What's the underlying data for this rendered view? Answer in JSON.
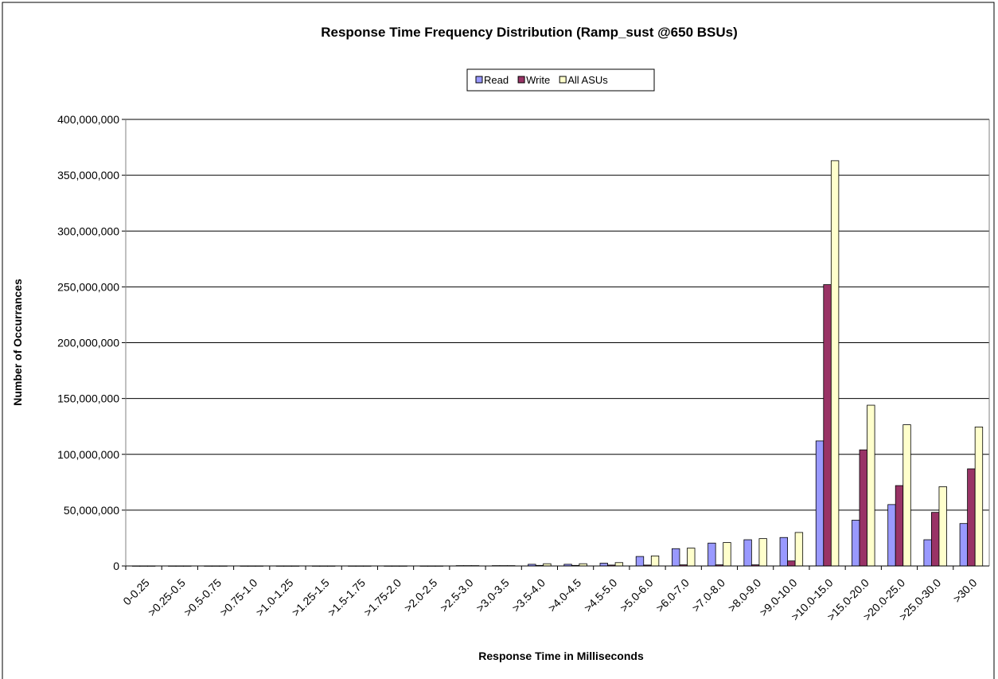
{
  "chart_data": {
    "type": "bar",
    "title": "Response Time Frequency Distribution (Ramp_sust @650 BSUs)",
    "x_label": "Response  Time in Milliseconds",
    "y_label": "Number of Occurrances",
    "categories": [
      "0-0.25",
      ">0.25-0.5",
      ">0.5-0.75",
      ">0.75-1.0",
      ">1.0-1.25",
      ">1.25-1.5",
      ">1.5-1.75",
      ">1.75-2.0",
      ">2.0-2.5",
      ">2.5-3.0",
      ">3.0-3.5",
      ">3.5-4.0",
      ">4.0-4.5",
      ">4.5-5.0",
      ">5.0-6.0",
      ">6.0-7.0",
      ">7.0-8.0",
      ">8.0-9.0",
      ">9.0-10.0",
      ">10.0-15.0",
      ">15.0-20.0",
      ">20.0-25.0",
      ">25.0-30.0",
      ">30.0"
    ],
    "series": [
      {
        "name": "Read",
        "color": "#9999ff",
        "values": [
          100000,
          100000,
          100000,
          100000,
          100000,
          100000,
          100000,
          100000,
          100000,
          300000,
          300000,
          1500000,
          1500000,
          2500000,
          8500000,
          15500000,
          20500000,
          23500000,
          25500000,
          112000000,
          41000000,
          55000000,
          23500000,
          38000000
        ]
      },
      {
        "name": "Write",
        "color": "#993366",
        "values": [
          100000,
          100000,
          100000,
          100000,
          100000,
          100000,
          100000,
          100000,
          100000,
          300000,
          300000,
          500000,
          500000,
          800000,
          800000,
          1000000,
          1000000,
          1000000,
          4500000,
          252000000,
          104000000,
          72000000,
          48000000,
          87000000
        ]
      },
      {
        "name": "All ASUs",
        "color": "#ffffcc",
        "values": [
          100000,
          100000,
          100000,
          100000,
          100000,
          100000,
          100000,
          100000,
          100000,
          300000,
          300000,
          2000000,
          2000000,
          3000000,
          9000000,
          16000000,
          21000000,
          24500000,
          30000000,
          363000000,
          144000000,
          126500000,
          71000000,
          124500000
        ]
      }
    ],
    "ylim": [
      0,
      400000000
    ],
    "yticks": [
      0,
      {
        "value": 50000000,
        "label": "50,000,000"
      },
      {
        "value": 100000000,
        "label": "100,000,000"
      },
      {
        "value": 150000000,
        "label": "150,000,000"
      },
      {
        "value": 200000000,
        "label": "200,000,000"
      },
      {
        "value": 250000000,
        "label": "250,000,000"
      },
      {
        "value": 300000000,
        "label": "300,000,000"
      },
      {
        "value": 350000000,
        "label": "350,000,000"
      },
      {
        "value": 400000000,
        "label": "400,000,000"
      }
    ],
    "grid": true
  }
}
